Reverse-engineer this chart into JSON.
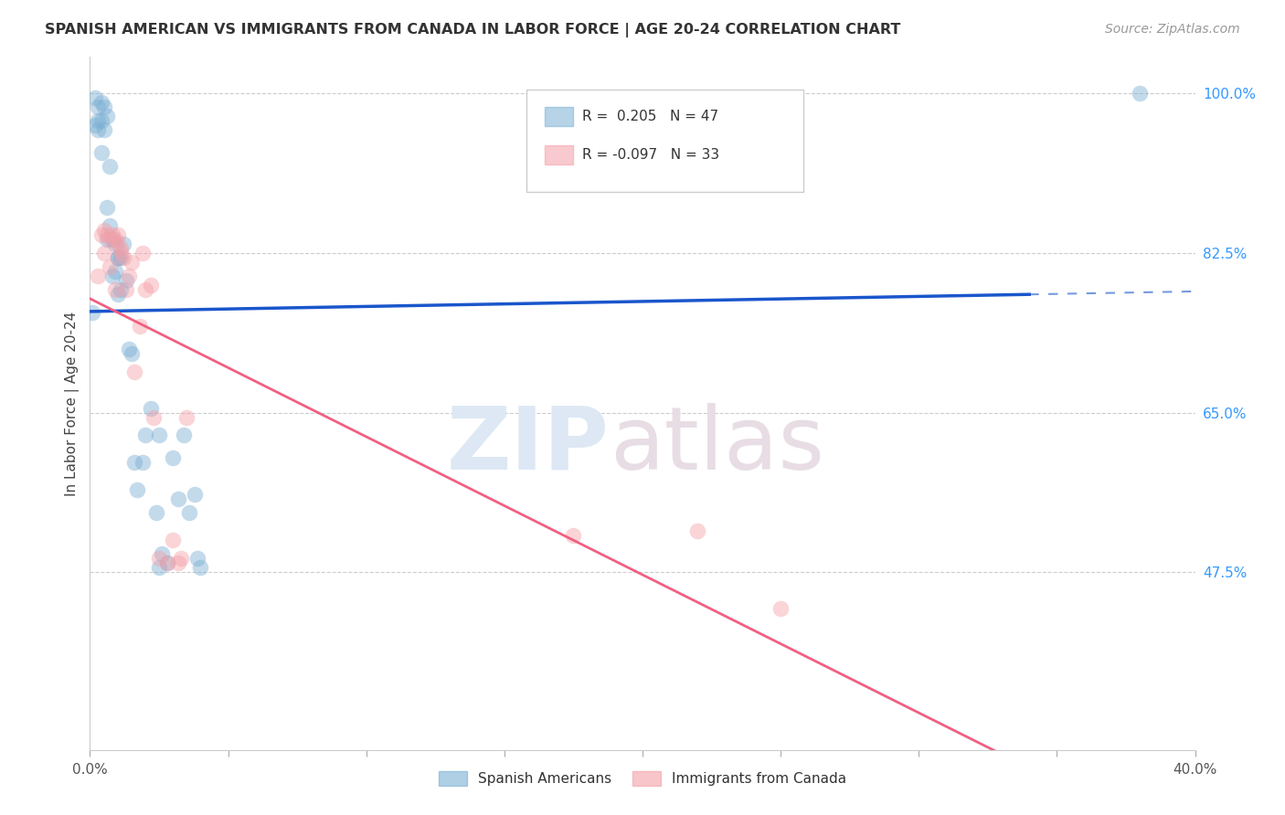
{
  "title": "SPANISH AMERICAN VS IMMIGRANTS FROM CANADA IN LABOR FORCE | AGE 20-24 CORRELATION CHART",
  "source": "Source: ZipAtlas.com",
  "ylabel": "In Labor Force | Age 20-24",
  "xlim": [
    0.0,
    0.4
  ],
  "ylim": [
    0.28,
    1.04
  ],
  "xtick_values": [
    0.0,
    0.05,
    0.1,
    0.15,
    0.2,
    0.25,
    0.3,
    0.35,
    0.4
  ],
  "xticklabels": [
    "0.0%",
    "",
    "",
    "",
    "",
    "",
    "",
    "",
    "40.0%"
  ],
  "ytick_values": [
    0.475,
    0.65,
    0.825,
    1.0
  ],
  "ytick_labels": [
    "47.5%",
    "65.0%",
    "82.5%",
    "100.0%"
  ],
  "r_blue": 0.205,
  "n_blue": 47,
  "r_pink": -0.097,
  "n_pink": 33,
  "legend_labels": [
    "Spanish Americans",
    "Immigrants from Canada"
  ],
  "blue_color": "#7BAFD4",
  "pink_color": "#F4A0A8",
  "line_blue": "#1a56cc",
  "line_pink": "#F06080",
  "blue_x": [
    0.001,
    0.002,
    0.002,
    0.003,
    0.003,
    0.003,
    0.004,
    0.004,
    0.004,
    0.005,
    0.005,
    0.006,
    0.006,
    0.006,
    0.007,
    0.007,
    0.008,
    0.008,
    0.009,
    0.009,
    0.01,
    0.01,
    0.01,
    0.011,
    0.011,
    0.012,
    0.013,
    0.014,
    0.015,
    0.016,
    0.017,
    0.019,
    0.02,
    0.022,
    0.024,
    0.025,
    0.025,
    0.026,
    0.028,
    0.03,
    0.032,
    0.034,
    0.036,
    0.038,
    0.039,
    0.04,
    0.38
  ],
  "blue_y": [
    0.76,
    0.965,
    0.995,
    0.97,
    0.985,
    0.96,
    0.99,
    0.97,
    0.935,
    0.985,
    0.96,
    0.975,
    0.84,
    0.875,
    0.92,
    0.855,
    0.84,
    0.8,
    0.835,
    0.805,
    0.82,
    0.78,
    0.82,
    0.82,
    0.785,
    0.835,
    0.795,
    0.72,
    0.715,
    0.595,
    0.565,
    0.595,
    0.625,
    0.655,
    0.54,
    0.48,
    0.625,
    0.495,
    0.485,
    0.6,
    0.555,
    0.625,
    0.54,
    0.56,
    0.49,
    0.48,
    1.0
  ],
  "pink_x": [
    0.003,
    0.004,
    0.005,
    0.005,
    0.006,
    0.007,
    0.007,
    0.008,
    0.009,
    0.009,
    0.01,
    0.01,
    0.011,
    0.011,
    0.012,
    0.013,
    0.014,
    0.015,
    0.016,
    0.018,
    0.019,
    0.02,
    0.022,
    0.023,
    0.025,
    0.028,
    0.03,
    0.032,
    0.033,
    0.035,
    0.175,
    0.22,
    0.25
  ],
  "pink_y": [
    0.8,
    0.845,
    0.825,
    0.85,
    0.845,
    0.84,
    0.81,
    0.845,
    0.84,
    0.785,
    0.845,
    0.835,
    0.83,
    0.825,
    0.82,
    0.785,
    0.8,
    0.815,
    0.695,
    0.745,
    0.825,
    0.785,
    0.79,
    0.645,
    0.49,
    0.485,
    0.51,
    0.485,
    0.49,
    0.645,
    0.515,
    0.52,
    0.435
  ]
}
